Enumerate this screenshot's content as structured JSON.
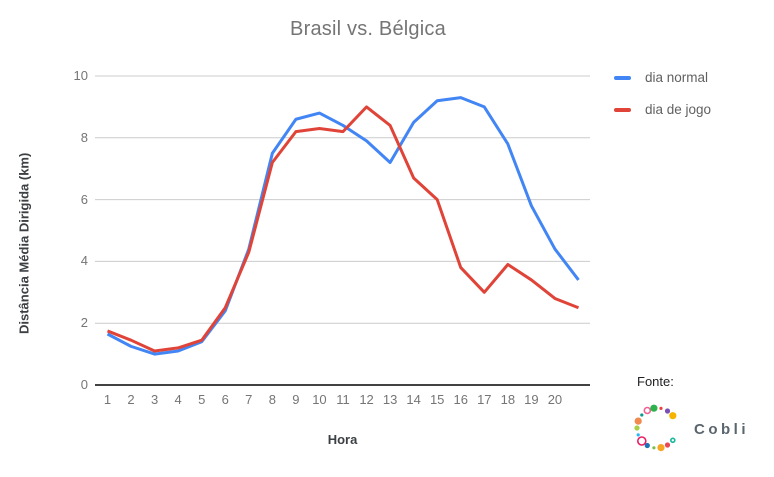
{
  "title": "Brasil vs. Bélgica",
  "legend": {
    "items": [
      {
        "label": "dia normal",
        "color": "#4285F4"
      },
      {
        "label": "dia de jogo",
        "color": "#E04438"
      }
    ]
  },
  "source": {
    "label": "Fonte:",
    "brand": "Cobli",
    "logo_icon": "cobli-c-ring-of-colored-dots",
    "logo_colors": [
      "#19b79c",
      "#e84855",
      "#f5a623",
      "#76c043",
      "#1a73b5",
      "#e91e63",
      "#29b6f6",
      "#a8cf45",
      "#f2894f",
      "#0a9b8a",
      "#f06292",
      "#2bb24c",
      "#e8433f",
      "#7a4fb5",
      "#f4b400"
    ]
  },
  "chart_data": {
    "type": "line",
    "x": [
      1,
      2,
      3,
      4,
      5,
      6,
      7,
      8,
      9,
      10,
      11,
      12,
      13,
      14,
      15,
      16,
      17,
      18,
      19,
      20,
      21
    ],
    "x_tick_labels": [
      "1",
      "2",
      "3",
      "4",
      "5",
      "6",
      "7",
      "8",
      "9",
      "10",
      "11",
      "12",
      "13",
      "14",
      "15",
      "16",
      "17",
      "18",
      "19",
      "20"
    ],
    "xlabel": "Hora",
    "ylabel": "Distância Média Dirigida (km)",
    "ylim": [
      0,
      10
    ],
    "yticks": [
      0,
      2,
      4,
      6,
      8,
      10
    ],
    "grid": true,
    "legend_position": "right",
    "series": [
      {
        "name": "dia normal",
        "color": "#4285F4",
        "values": [
          1.65,
          1.25,
          1.0,
          1.1,
          1.4,
          2.4,
          4.4,
          7.5,
          8.6,
          8.8,
          8.4,
          7.9,
          7.2,
          8.5,
          9.2,
          9.3,
          9.0,
          7.8,
          5.8,
          4.4,
          3.4
        ]
      },
      {
        "name": "dia de jogo",
        "color": "#E04438",
        "values": [
          1.75,
          1.45,
          1.1,
          1.2,
          1.45,
          2.5,
          4.3,
          7.2,
          8.2,
          8.3,
          8.2,
          9.0,
          8.4,
          6.7,
          6.0,
          3.8,
          3.0,
          3.9,
          3.4,
          2.8,
          2.5
        ]
      }
    ]
  }
}
